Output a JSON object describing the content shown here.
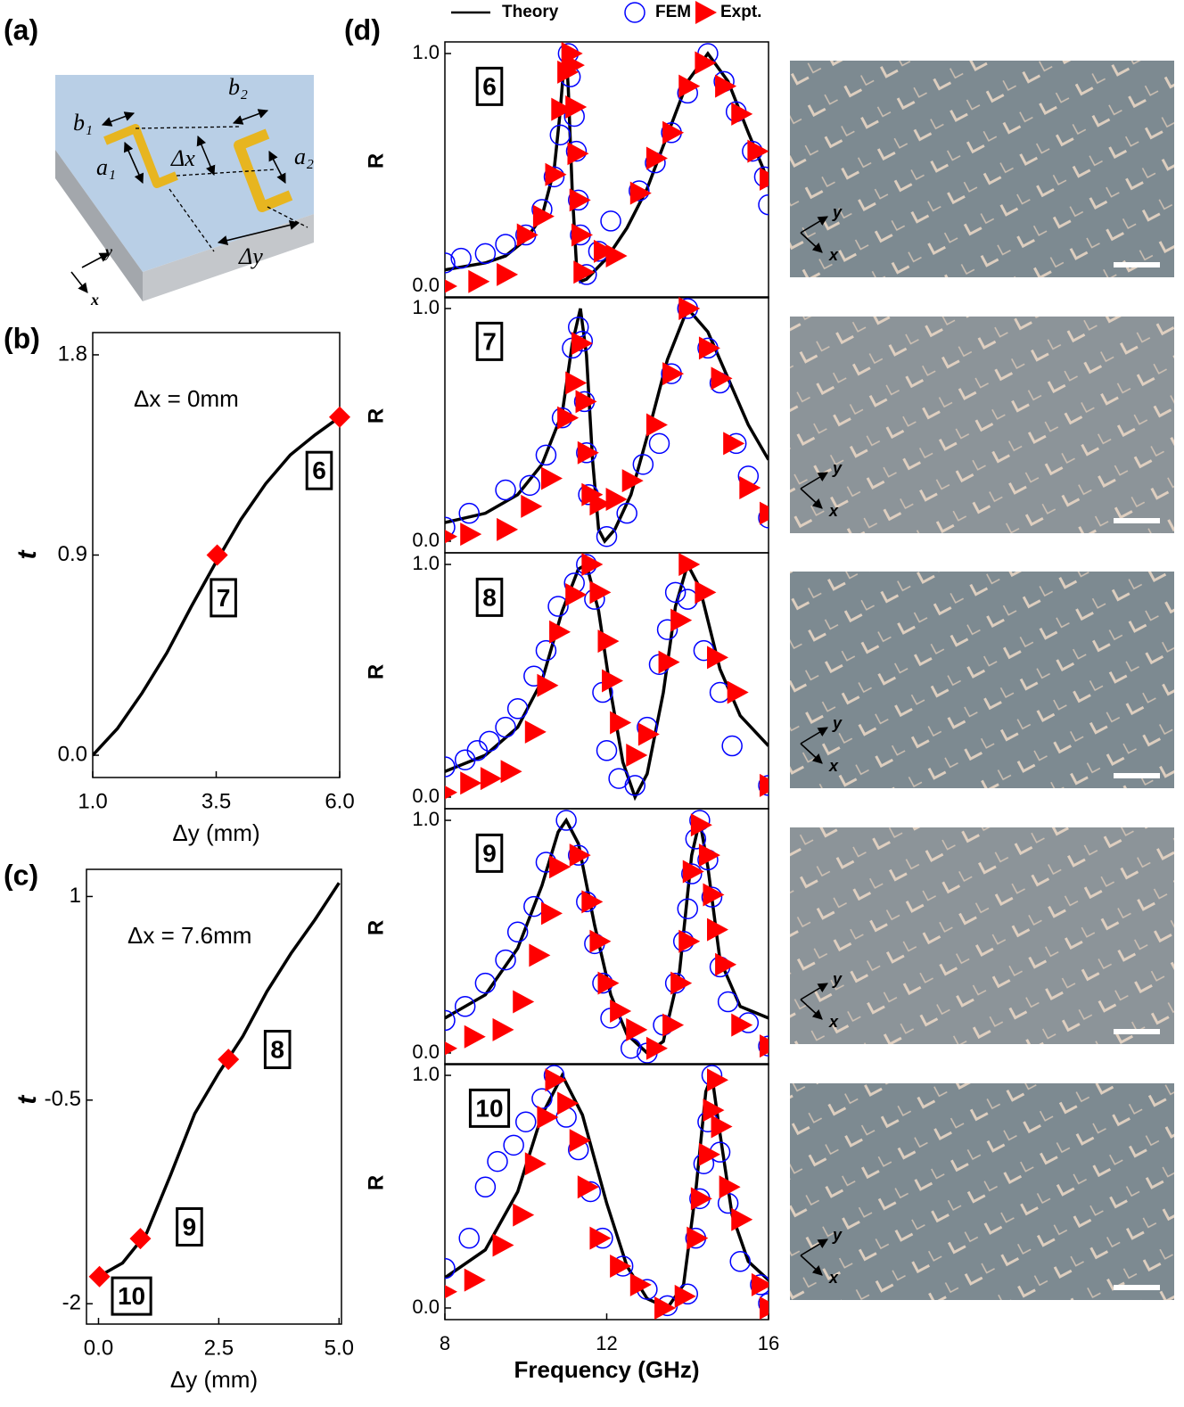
{
  "panel_labels": [
    "(a)",
    "(b)",
    "(c)",
    "(d)"
  ],
  "diagram": {
    "labels": [
      "b₁",
      "a₁",
      "Δx",
      "b₂",
      "a₂",
      "Δy"
    ],
    "axes": [
      "y",
      "x"
    ]
  },
  "photos": [
    {
      "axes": [
        "y",
        "x"
      ]
    },
    {
      "axes": [
        "y",
        "x"
      ]
    },
    {
      "axes": [
        "y",
        "x"
      ]
    },
    {
      "axes": [
        "y",
        "x"
      ]
    },
    {
      "axes": [
        "y",
        "x"
      ]
    }
  ],
  "chart_data": [
    {
      "type": "line",
      "xlabel": "Δy (mm)",
      "ylabel": "t",
      "annotation": "Δx = 0mm",
      "xlim": [
        1,
        6
      ],
      "ylim": [
        -0.1,
        1.9
      ],
      "xticks": [
        {
          "value": 1,
          "label": "1.0"
        },
        {
          "value": 3.5,
          "label": "3.5"
        },
        {
          "value": 6,
          "label": "6.0"
        }
      ],
      "yticks": [
        {
          "value": 0,
          "label": "0.0"
        },
        0.9,
        1.8
      ],
      "series": [
        {
          "color": "#000000",
          "marker": "none",
          "x": [
            1,
            1.5,
            2,
            2.5,
            3,
            3.5,
            4,
            4.5,
            5,
            5.5,
            6
          ],
          "values": [
            0,
            0.12,
            0.28,
            0.46,
            0.67,
            0.87,
            1.06,
            1.22,
            1.35,
            1.44,
            1.52
          ]
        },
        {
          "color": "#ff0000",
          "marker": "diamond",
          "x": [
            6,
            3.52
          ],
          "values": [
            1.52,
            0.9
          ],
          "point_labels": [
            "6",
            "7"
          ]
        }
      ]
    },
    {
      "type": "line",
      "xlabel": "Δy (mm)",
      "ylabel": "t",
      "annotation": "Δx = 7.6mm",
      "xlim": [
        -0.25,
        5.05
      ],
      "ylim": [
        -2.15,
        1.2
      ],
      "xticks": [
        {
          "value": 0,
          "label": "0.0"
        },
        2.5,
        {
          "value": 5,
          "label": "5.0"
        }
      ],
      "yticks": [
        -2,
        -0.5,
        1
      ],
      "series": [
        {
          "color": "#000000",
          "marker": "none",
          "x": [
            0,
            0.5,
            1,
            1.5,
            2,
            2.5,
            3,
            3.5,
            4,
            4.5,
            5
          ],
          "values": [
            -1.8,
            -1.7,
            -1.48,
            -1.05,
            -0.6,
            -0.3,
            -0.03,
            0.3,
            0.58,
            0.83,
            1.1
          ]
        },
        {
          "color": "#ff0000",
          "marker": "diamond",
          "x": [
            2.7,
            0.87,
            0.02
          ],
          "values": [
            -0.2,
            -1.52,
            -1.8
          ],
          "point_labels": [
            "8",
            "9",
            "10"
          ]
        }
      ]
    },
    {
      "type": "line",
      "ylabel": "R",
      "annotation": "6",
      "xlim": [
        8,
        16
      ],
      "ylim": [
        -0.05,
        1.05
      ],
      "yticks": [
        {
          "value": 0,
          "label": "0.0"
        },
        {
          "value": 1,
          "label": "1.0"
        }
      ],
      "series": [
        {
          "name": "Theory",
          "color": "#000000",
          "marker": "none",
          "x": [
            8,
            9,
            9.5,
            10,
            10.4,
            10.7,
            10.85,
            10.95,
            11,
            11.05,
            11.15,
            11.25,
            11.35,
            11.5,
            12,
            12.5,
            13,
            13.5,
            14,
            14.5,
            15,
            15.5,
            16
          ],
          "values": [
            0.07,
            0.1,
            0.13,
            0.2,
            0.3,
            0.5,
            0.75,
            0.97,
            1,
            0.85,
            0.4,
            0.1,
            0.02,
            0.03,
            0.12,
            0.25,
            0.42,
            0.65,
            0.88,
            1,
            0.88,
            0.66,
            0.45
          ]
        },
        {
          "name": "FEM",
          "color": "#0000ff",
          "marker": "circle",
          "x": [
            8,
            8.4,
            9,
            9.5,
            10,
            10.4,
            10.7,
            10.85,
            11.05,
            11.1,
            11.2,
            11.25,
            11.3,
            11.35,
            11.5,
            11.8,
            12.1,
            12.8,
            13.2,
            13.6,
            14,
            14.5,
            14.9,
            15.2,
            15.6,
            15.9,
            16
          ],
          "values": [
            0.1,
            0.12,
            0.14,
            0.18,
            0.22,
            0.33,
            0.47,
            0.65,
            1,
            0.9,
            0.73,
            0.58,
            0.37,
            0.22,
            0.05,
            0.15,
            0.28,
            0.41,
            0.53,
            0.66,
            0.83,
            1,
            0.88,
            0.75,
            0.58,
            0.47,
            0.35
          ]
        },
        {
          "name": "Expt.",
          "color": "#ff0000",
          "marker": "triangle",
          "x": [
            8,
            8.8,
            9.5,
            10,
            10.4,
            10.7,
            10.85,
            11,
            11.1,
            11.15,
            11.2,
            11.25,
            11.3,
            11.35,
            11.4,
            11.9,
            12.2,
            12.8,
            13.2,
            13.6,
            14,
            14.4,
            14.9,
            15.3,
            15.7,
            16
          ],
          "values": [
            0,
            0.02,
            0.05,
            0.22,
            0.3,
            0.48,
            0.76,
            0.92,
            1,
            0.95,
            0.77,
            0.57,
            0.37,
            0.22,
            0.06,
            0.15,
            0.13,
            0.4,
            0.55,
            0.66,
            0.86,
            0.96,
            0.86,
            0.74,
            0.58,
            0.46
          ]
        }
      ]
    },
    {
      "type": "line",
      "ylabel": "R",
      "annotation": "7",
      "xlim": [
        8,
        16
      ],
      "ylim": [
        -0.05,
        1.05
      ],
      "yticks": [
        {
          "value": 0,
          "label": "0.0"
        },
        {
          "value": 1,
          "label": "1.0"
        }
      ],
      "series": [
        {
          "color": "#000000",
          "marker": "none",
          "x": [
            8,
            9,
            9.8,
            10.4,
            10.9,
            11.15,
            11.35,
            11.5,
            11.65,
            11.8,
            11.95,
            12.2,
            12.6,
            13,
            13.5,
            14,
            14.5,
            15,
            15.5,
            16
          ],
          "values": [
            0.08,
            0.12,
            0.2,
            0.33,
            0.55,
            0.85,
            1,
            0.8,
            0.35,
            0.05,
            0,
            0.05,
            0.2,
            0.45,
            0.78,
            1,
            0.9,
            0.7,
            0.5,
            0.35
          ]
        },
        {
          "color": "#0000ff",
          "marker": "circle",
          "x": [
            8,
            8.6,
            9.5,
            10.1,
            10.5,
            10.9,
            11.15,
            11.3,
            11.4,
            11.45,
            11.5,
            11.55,
            12,
            12.5,
            12.9,
            13.3,
            13.6,
            14,
            14.5,
            14.8,
            15.2,
            15.5,
            16
          ],
          "values": [
            0.06,
            0.12,
            0.22,
            0.24,
            0.37,
            0.53,
            0.83,
            0.92,
            0.86,
            0.6,
            0.38,
            0.2,
            0.02,
            0.12,
            0.33,
            0.42,
            0.72,
            1,
            0.83,
            0.68,
            0.42,
            0.28,
            0.1
          ]
        },
        {
          "color": "#ff0000",
          "marker": "triangle",
          "x": [
            8,
            8.6,
            9.5,
            10.1,
            10.6,
            11,
            11.2,
            11.35,
            11.45,
            11.5,
            11.6,
            11.8,
            12.2,
            12.6,
            13.2,
            13.6,
            14,
            14.5,
            14.8,
            15.1,
            15.5,
            16
          ],
          "values": [
            0.02,
            0.03,
            0.05,
            0.15,
            0.27,
            0.53,
            0.68,
            0.85,
            0.6,
            0.38,
            0.2,
            0.16,
            0.18,
            0.26,
            0.5,
            0.72,
            1,
            0.83,
            0.7,
            0.42,
            0.23,
            0.12
          ]
        }
      ]
    },
    {
      "type": "line",
      "ylabel": "R",
      "annotation": "8",
      "xlim": [
        8,
        16
      ],
      "ylim": [
        -0.05,
        1.05
      ],
      "yticks": [
        {
          "value": 0,
          "label": "0.0"
        },
        {
          "value": 1,
          "label": "1.0"
        }
      ],
      "series": [
        {
          "color": "#000000",
          "marker": "none",
          "x": [
            8,
            9,
            9.8,
            10.4,
            10.9,
            11.3,
            11.5,
            11.8,
            12.1,
            12.4,
            12.7,
            13,
            13.4,
            13.7,
            14,
            14.3,
            14.8,
            15.3,
            16
          ],
          "values": [
            0.11,
            0.18,
            0.3,
            0.5,
            0.8,
            0.98,
            1,
            0.8,
            0.45,
            0.15,
            0,
            0.1,
            0.45,
            0.82,
            1,
            0.9,
            0.55,
            0.35,
            0.22
          ]
        },
        {
          "color": "#0000ff",
          "marker": "circle",
          "x": [
            8,
            8.5,
            8.8,
            9.1,
            9.5,
            9.8,
            10.2,
            10.5,
            10.8,
            11.2,
            11.5,
            11.7,
            11.9,
            12,
            12.3,
            12.7,
            13,
            13.3,
            13.5,
            13.7,
            14,
            14.4,
            14.8,
            15.1,
            16
          ],
          "values": [
            0.13,
            0.16,
            0.2,
            0.24,
            0.3,
            0.38,
            0.52,
            0.63,
            0.82,
            0.92,
            1,
            0.85,
            0.45,
            0.2,
            0.08,
            0.05,
            0.3,
            0.57,
            0.72,
            0.88,
            0.85,
            0.63,
            0.45,
            0.22,
            0.05
          ]
        },
        {
          "color": "#ff0000",
          "marker": "triangle",
          "x": [
            8,
            8.6,
            9.1,
            9.6,
            10.2,
            10.5,
            10.8,
            11.2,
            11.6,
            11.8,
            12,
            12.1,
            12.3,
            12.7,
            13,
            13.5,
            13.8,
            14,
            14.4,
            14.7,
            15.2,
            16
          ],
          "values": [
            0.02,
            0.06,
            0.08,
            0.11,
            0.28,
            0.48,
            0.71,
            0.87,
            1,
            0.88,
            0.67,
            0.5,
            0.32,
            0.18,
            0.27,
            0.58,
            0.76,
            1,
            0.88,
            0.6,
            0.45,
            0.05
          ]
        }
      ]
    },
    {
      "type": "line",
      "ylabel": "R",
      "annotation": "9",
      "xlim": [
        8,
        16
      ],
      "ylim": [
        -0.05,
        1.05
      ],
      "yticks": [
        {
          "value": 0,
          "label": "0.0"
        },
        {
          "value": 1,
          "label": "1.0"
        }
      ],
      "series": [
        {
          "color": "#000000",
          "marker": "none",
          "x": [
            8,
            9,
            9.8,
            10.4,
            10.8,
            11,
            11.3,
            11.7,
            12.1,
            12.5,
            13,
            13.4,
            13.8,
            14.1,
            14.3,
            14.5,
            14.8,
            15.3,
            16
          ],
          "values": [
            0.15,
            0.25,
            0.45,
            0.72,
            0.95,
            1,
            0.9,
            0.55,
            0.25,
            0.08,
            0,
            0.05,
            0.35,
            0.85,
            1,
            0.8,
            0.4,
            0.2,
            0.15
          ]
        },
        {
          "color": "#0000ff",
          "marker": "circle",
          "x": [
            8,
            8.5,
            9,
            9.5,
            9.8,
            10.2,
            10.5,
            11,
            11.3,
            11.5,
            11.7,
            11.9,
            12.1,
            12.6,
            13,
            13.4,
            13.7,
            13.9,
            14,
            14.1,
            14.2,
            14.3,
            14.5,
            14.6,
            14.8,
            15,
            15.5,
            16
          ],
          "values": [
            0.14,
            0.2,
            0.3,
            0.4,
            0.52,
            0.63,
            0.82,
            1,
            0.85,
            0.65,
            0.47,
            0.3,
            0.15,
            0.02,
            0,
            0.12,
            0.3,
            0.48,
            0.62,
            0.77,
            0.92,
            1,
            0.83,
            0.67,
            0.37,
            0.22,
            0.13,
            0.03
          ]
        },
        {
          "color": "#ff0000",
          "marker": "triangle",
          "x": [
            8,
            8.7,
            9.4,
            9.9,
            10.3,
            10.6,
            10.8,
            11.3,
            11.6,
            11.8,
            12,
            12.3,
            12.7,
            13.2,
            13.6,
            13.8,
            14,
            14.1,
            14.3,
            14.5,
            14.6,
            14.7,
            14.9,
            15.3,
            16
          ],
          "values": [
            0.02,
            0.07,
            0.1,
            0.22,
            0.42,
            0.6,
            0.8,
            0.85,
            0.65,
            0.48,
            0.3,
            0.18,
            0.1,
            0.02,
            0.12,
            0.3,
            0.48,
            0.78,
            0.98,
            0.85,
            0.68,
            0.53,
            0.38,
            0.12,
            0.03
          ]
        }
      ]
    },
    {
      "type": "line",
      "ylabel": "R",
      "annotation": "10",
      "xlabel": "Frequency (GHz)",
      "xlim": [
        8,
        16
      ],
      "ylim": [
        -0.05,
        1.05
      ],
      "xticks": [
        8,
        12,
        16
      ],
      "yticks": [
        {
          "value": 0,
          "label": "0.0"
        },
        {
          "value": 1,
          "label": "1.0"
        }
      ],
      "series": [
        {
          "color": "#000000",
          "marker": "none",
          "x": [
            8,
            9,
            9.8,
            10.4,
            10.9,
            11.4,
            12,
            12.5,
            13,
            13.5,
            13.9,
            14.2,
            14.45,
            14.6,
            14.8,
            15.1,
            15.5,
            16
          ],
          "values": [
            0.13,
            0.25,
            0.5,
            0.83,
            1,
            0.83,
            0.45,
            0.18,
            0.04,
            0,
            0.1,
            0.5,
            0.93,
            1,
            0.75,
            0.4,
            0.2,
            0.12
          ]
        },
        {
          "color": "#0000ff",
          "marker": "circle",
          "x": [
            8,
            8.6,
            9,
            9.3,
            9.7,
            10,
            10.4,
            10.7,
            11,
            11.3,
            11.6,
            11.9,
            12.4,
            13,
            13.5,
            14,
            14.2,
            14.3,
            14.4,
            14.5,
            14.6,
            14.8,
            15,
            15.3,
            15.8,
            16
          ],
          "values": [
            0.17,
            0.3,
            0.52,
            0.63,
            0.7,
            0.8,
            0.9,
            1,
            0.82,
            0.68,
            0.5,
            0.3,
            0.18,
            0.08,
            0.01,
            0.06,
            0.3,
            0.47,
            0.62,
            0.8,
            1,
            0.67,
            0.45,
            0.2,
            0.1,
            0.02
          ]
        },
        {
          "color": "#ff0000",
          "marker": "triangle",
          "x": [
            8,
            8.7,
            9.4,
            9.9,
            10.2,
            10.5,
            10.7,
            11,
            11.3,
            11.5,
            11.8,
            12.3,
            12.8,
            13.4,
            13.9,
            14.2,
            14.3,
            14.5,
            14.6,
            14.7,
            14.8,
            15,
            15.3,
            15.8,
            16
          ],
          "values": [
            0.07,
            0.12,
            0.27,
            0.4,
            0.62,
            0.82,
            0.98,
            0.88,
            0.72,
            0.52,
            0.3,
            0.18,
            0.1,
            0,
            0.05,
            0.3,
            0.47,
            0.66,
            0.85,
            0.98,
            0.78,
            0.52,
            0.38,
            0.1,
            0
          ]
        }
      ]
    }
  ]
}
